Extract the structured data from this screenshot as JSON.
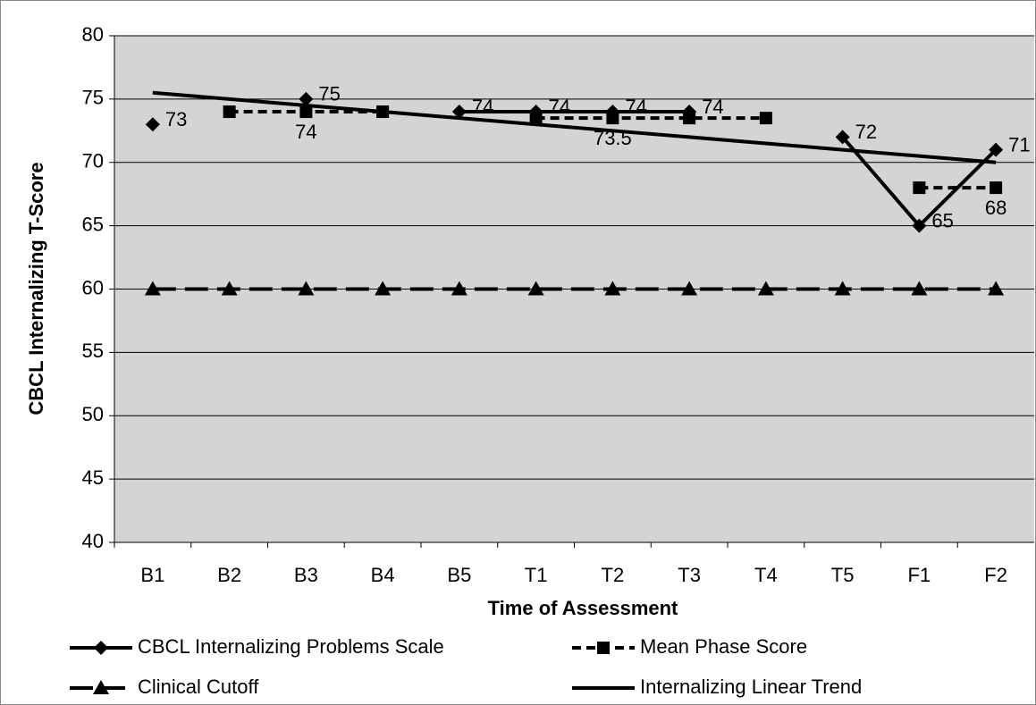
{
  "chart_data": {
    "type": "line",
    "ylabel": "CBCL Internalizing T-Score",
    "xlabel": "Time of Assessment",
    "categories": [
      "B1",
      "B2",
      "B3",
      "B4",
      "B5",
      "T1",
      "T2",
      "T3",
      "T4",
      "T5",
      "F1",
      "F2"
    ],
    "ylim": [
      40,
      80
    ],
    "yticks": [
      40,
      45,
      50,
      55,
      60,
      65,
      70,
      75,
      80
    ],
    "grid": true,
    "legend": "bottom",
    "series": [
      {
        "name": "CBCL Internalizing Problems Scale",
        "color": "#000000",
        "dash": "solid",
        "marker": "diamond",
        "values": [
          73,
          null,
          75,
          null,
          74,
          74,
          74,
          74,
          null,
          72,
          65,
          71
        ],
        "value_labels": [
          "73",
          null,
          "75",
          null,
          "74",
          "74",
          "74",
          "74",
          null,
          "72",
          "65",
          "71"
        ]
      },
      {
        "name": "Mean Phase Score",
        "color": "#000000",
        "dash": "short",
        "marker": "square",
        "values": [
          null,
          74,
          74,
          74,
          null,
          73.5,
          73.5,
          73.5,
          73.5,
          null,
          68,
          68
        ],
        "value_labels": [
          null,
          null,
          "74",
          null,
          null,
          null,
          "73.5",
          null,
          null,
          null,
          null,
          "68"
        ]
      },
      {
        "name": "Clinical Cutoff",
        "color": "#000000",
        "dash": "long",
        "marker": "triangle",
        "values": [
          60,
          60,
          60,
          60,
          60,
          60,
          60,
          60,
          60,
          60,
          60,
          60
        ]
      },
      {
        "name": "Internalizing Linear Trend",
        "color": "#000000",
        "dash": "solid",
        "marker": "none",
        "values": [
          75.5,
          75,
          74.5,
          74,
          73.5,
          73,
          72.5,
          72,
          71.5,
          71,
          70.5,
          70
        ]
      }
    ]
  }
}
